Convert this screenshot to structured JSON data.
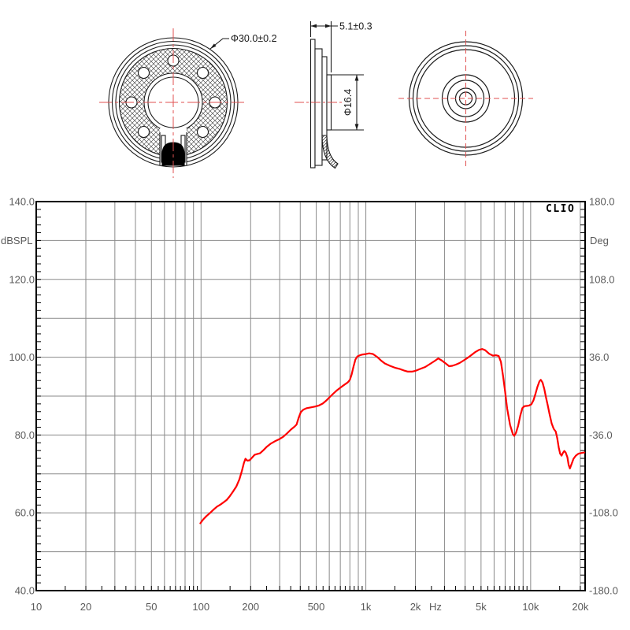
{
  "drawing": {
    "front": {
      "diameter_label": "Φ30.0±0.2"
    },
    "side": {
      "thickness_label": "5.1±0.3",
      "magnet_label": "Φ16.4"
    }
  },
  "chart": {
    "spl_axis_label": "dBSPL",
    "deg_axis_label": "Deg",
    "brand": "CLIO",
    "hz_unit": "Hz"
  },
  "chart_data": {
    "type": "line",
    "instrument": "CLIO",
    "x_axis": {
      "label": "Hz",
      "scale": "log",
      "min": 10,
      "max": 21400,
      "ticks": [
        [
          10,
          "10"
        ],
        [
          20,
          "20"
        ],
        [
          50,
          "50"
        ],
        [
          100,
          "100"
        ],
        [
          200,
          "200"
        ],
        [
          500,
          "500"
        ],
        [
          1000,
          "1k"
        ],
        [
          2000,
          "2k"
        ],
        [
          5000,
          "5k"
        ],
        [
          10000,
          "10k"
        ],
        [
          20000,
          "20k"
        ]
      ]
    },
    "y_left_axis": {
      "label": "dBSPL",
      "min": 40,
      "max": 140,
      "gridline_step": 10,
      "ticks": [
        [
          140,
          "140.0"
        ],
        [
          120,
          "120.0"
        ],
        [
          100,
          "100.0"
        ],
        [
          80,
          "80.0"
        ],
        [
          60,
          "60.0"
        ],
        [
          40,
          "40.0"
        ]
      ]
    },
    "y_right_axis": {
      "label": "Deg",
      "min": -180,
      "max": 180,
      "ticks": [
        [
          180,
          "180.0"
        ],
        [
          108,
          "108.0"
        ],
        [
          36,
          "36.0"
        ],
        [
          -36,
          "-36.0"
        ],
        [
          -108,
          "-108.0"
        ],
        [
          -180,
          "-180.0"
        ]
      ]
    },
    "series": [
      {
        "name": "SPL frequency response",
        "color": "#ff0000",
        "points": [
          [
            99,
            57.3
          ],
          [
            103,
            58.3
          ],
          [
            108,
            59.2
          ],
          [
            113,
            59.9
          ],
          [
            119,
            60.8
          ],
          [
            125,
            61.6
          ],
          [
            131,
            62.1
          ],
          [
            137,
            62.7
          ],
          [
            143,
            63.3
          ],
          [
            149,
            64.2
          ],
          [
            156,
            65.4
          ],
          [
            164,
            66.8
          ],
          [
            171,
            68.6
          ],
          [
            177,
            70.8
          ],
          [
            182,
            72.8
          ],
          [
            186,
            73.9
          ],
          [
            191,
            73.4
          ],
          [
            197,
            73.5
          ],
          [
            204,
            74.2
          ],
          [
            211,
            74.9
          ],
          [
            219,
            75.1
          ],
          [
            228,
            75.3
          ],
          [
            239,
            76.1
          ],
          [
            251,
            77.0
          ],
          [
            265,
            77.8
          ],
          [
            281,
            78.4
          ],
          [
            298,
            78.9
          ],
          [
            316,
            79.6
          ],
          [
            334,
            80.5
          ],
          [
            351,
            81.4
          ],
          [
            368,
            82.1
          ],
          [
            380,
            82.7
          ],
          [
            391,
            84.4
          ],
          [
            403,
            85.9
          ],
          [
            417,
            86.5
          ],
          [
            438,
            86.9
          ],
          [
            464,
            87.1
          ],
          [
            491,
            87.3
          ],
          [
            519,
            87.6
          ],
          [
            548,
            88.1
          ],
          [
            577,
            88.9
          ],
          [
            602,
            89.7
          ],
          [
            634,
            90.6
          ],
          [
            668,
            91.5
          ],
          [
            702,
            92.2
          ],
          [
            739,
            92.9
          ],
          [
            776,
            93.5
          ],
          [
            800,
            94.2
          ],
          [
            821,
            95.6
          ],
          [
            842,
            97.6
          ],
          [
            864,
            99.4
          ],
          [
            888,
            100.2
          ],
          [
            921,
            100.5
          ],
          [
            959,
            100.7
          ],
          [
            1000,
            100.8
          ],
          [
            1048,
            101.0
          ],
          [
            1106,
            100.8
          ],
          [
            1168,
            100.1
          ],
          [
            1233,
            99.2
          ],
          [
            1302,
            98.4
          ],
          [
            1400,
            97.8
          ],
          [
            1500,
            97.3
          ],
          [
            1600,
            97.0
          ],
          [
            1700,
            96.6
          ],
          [
            1800,
            96.3
          ],
          [
            1900,
            96.3
          ],
          [
            2000,
            96.5
          ],
          [
            2142,
            97.0
          ],
          [
            2294,
            97.5
          ],
          [
            2457,
            98.3
          ],
          [
            2631,
            99.1
          ],
          [
            2750,
            99.7
          ],
          [
            2900,
            99.1
          ],
          [
            3050,
            98.4
          ],
          [
            3200,
            97.7
          ],
          [
            3350,
            97.8
          ],
          [
            3520,
            98.1
          ],
          [
            3700,
            98.5
          ],
          [
            3900,
            99.1
          ],
          [
            4100,
            99.7
          ],
          [
            4320,
            100.4
          ],
          [
            4600,
            101.3
          ],
          [
            4870,
            101.9
          ],
          [
            5080,
            102.1
          ],
          [
            5300,
            101.8
          ],
          [
            5600,
            100.9
          ],
          [
            5900,
            100.4
          ],
          [
            6150,
            100.5
          ],
          [
            6400,
            100.3
          ],
          [
            6600,
            98.8
          ],
          [
            6800,
            95.2
          ],
          [
            7000,
            91.2
          ],
          [
            7200,
            86.8
          ],
          [
            7500,
            82.6
          ],
          [
            7800,
            80.2
          ],
          [
            7950,
            79.8
          ],
          [
            8150,
            80.6
          ],
          [
            8400,
            82.4
          ],
          [
            8650,
            85.0
          ],
          [
            8900,
            86.9
          ],
          [
            9150,
            87.4
          ],
          [
            9500,
            87.5
          ],
          [
            9800,
            87.6
          ],
          [
            10100,
            87.9
          ],
          [
            10400,
            88.9
          ],
          [
            10700,
            90.6
          ],
          [
            11000,
            92.4
          ],
          [
            11300,
            93.8
          ],
          [
            11520,
            94.2
          ],
          [
            11800,
            93.5
          ],
          [
            12100,
            91.8
          ],
          [
            12400,
            89.6
          ],
          [
            12700,
            87.6
          ],
          [
            13000,
            85.5
          ],
          [
            13400,
            83.0
          ],
          [
            13800,
            81.6
          ],
          [
            14200,
            80.9
          ],
          [
            14500,
            79.2
          ],
          [
            14800,
            76.8
          ],
          [
            15100,
            75.2
          ],
          [
            15400,
            74.7
          ],
          [
            15700,
            75.4
          ],
          [
            16000,
            75.9
          ],
          [
            16300,
            75.5
          ],
          [
            16700,
            74.3
          ],
          [
            17000,
            72.3
          ],
          [
            17300,
            71.4
          ],
          [
            17700,
            72.5
          ],
          [
            18200,
            73.9
          ],
          [
            18800,
            74.7
          ],
          [
            19500,
            75.2
          ],
          [
            20500,
            75.4
          ],
          [
            21200,
            75.5
          ]
        ]
      }
    ]
  }
}
